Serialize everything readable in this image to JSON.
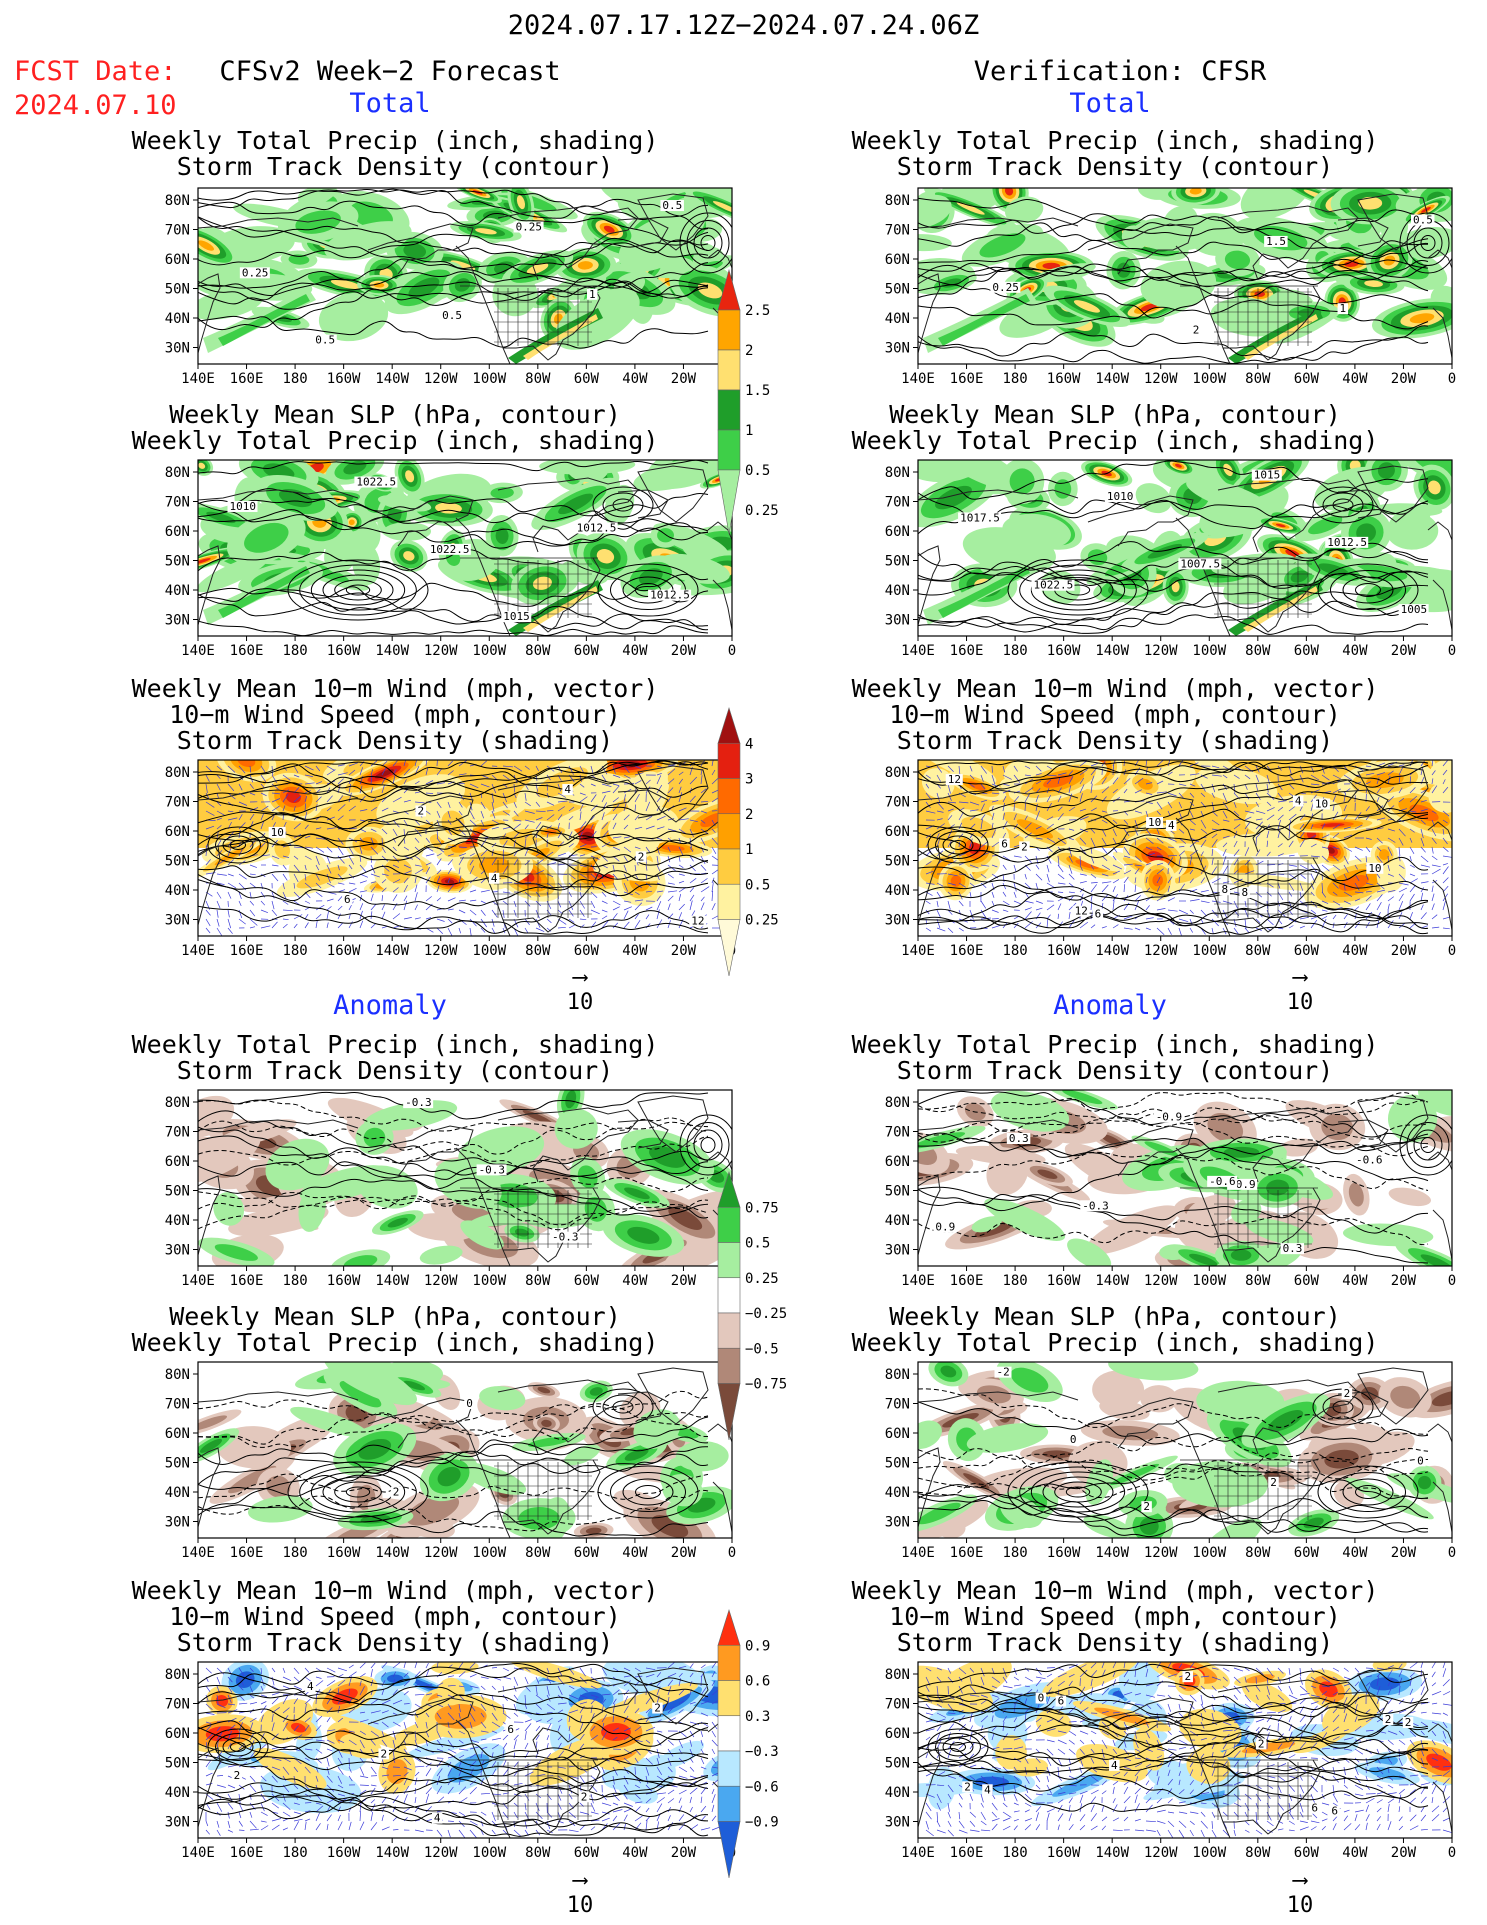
{
  "header": {
    "period": "2024.07.17.12Z−2024.07.24.06Z",
    "fcst_label": "FCST Date:",
    "fcst_date": "2024.07.10",
    "left_title": "CFSv2 Week−2 Forecast",
    "right_title": "Verification: CFSR",
    "total_label": "Total",
    "anomaly_label": "Anomaly"
  },
  "panel_titles": {
    "precip_storm": [
      "Weekly Total Precip (inch, shading)",
      "Storm Track Density (contour)"
    ],
    "slp_precip": [
      "Weekly Mean SLP (hPa, contour)",
      "Weekly Total Precip (inch, shading)"
    ],
    "wind_storm": [
      "Weekly Mean 10−m Wind (mph, vector)",
      "10−m Wind Speed (mph, contour)",
      "Storm Track Density (shading)"
    ]
  },
  "axes": {
    "lat_labels": [
      "80N",
      "70N",
      "60N",
      "50N",
      "40N",
      "30N"
    ],
    "lon_labels": [
      "140E",
      "160E",
      "180",
      "160W",
      "140W",
      "120W",
      "100W",
      "80W",
      "60W",
      "40W",
      "20W",
      "0"
    ]
  },
  "vector_ref": "10",
  "colorbars": {
    "precip_total": {
      "labels": [
        "2.5",
        "2",
        "1.5",
        "1",
        "0.5",
        "0.25"
      ],
      "colors": [
        "#e8250f",
        "#ffa500",
        "#ffe070",
        "#1f9e2a",
        "#3ecf48",
        "#a6eea0"
      ]
    },
    "storm_total": {
      "labels": [
        "4",
        "3",
        "2",
        "1",
        "0.5",
        "0.25"
      ],
      "colors": [
        "#a01010",
        "#e42010",
        "#ff6a00",
        "#ffa000",
        "#ffcc40",
        "#fff2a0",
        "#fffad8"
      ]
    },
    "precip_anom": {
      "labels": [
        "0.75",
        "0.5",
        "0.25",
        "−0.25",
        "−0.5",
        "−0.75"
      ],
      "colors": [
        "#1f9e2a",
        "#3ecf48",
        "#a6eea0",
        "#ffffff",
        "#e3c8bd",
        "#b08878",
        "#7a4a3a"
      ]
    },
    "storm_anom": {
      "labels": [
        "0.9",
        "0.6",
        "0.3",
        "−0.3",
        "−0.6",
        "−0.9"
      ],
      "colors": [
        "#ff3010",
        "#ff9a20",
        "#ffe070",
        "#ffffff",
        "#b8e8ff",
        "#4aa8f0",
        "#1e5ed8"
      ]
    }
  },
  "panels": [
    {
      "id": "fc-total-precip",
      "contour_labels": [
        "0.5",
        "0.25",
        "0.5",
        "1",
        "0.25",
        "0.5"
      ]
    },
    {
      "id": "vf-total-precip",
      "contour_labels": [
        "0.25",
        "0.5",
        "1",
        "1.5",
        "2"
      ]
    },
    {
      "id": "fc-total-slp",
      "contour_labels": [
        "1010",
        "1012.5",
        "1012.5",
        "1015",
        "1022.5",
        "1022.5"
      ]
    },
    {
      "id": "vf-total-slp",
      "contour_labels": [
        "1005",
        "1012.5",
        "1015",
        "1007.5",
        "1010",
        "1022.5",
        "1017.5"
      ]
    },
    {
      "id": "fc-total-wind",
      "contour_labels": [
        "2",
        "4",
        "4",
        "2",
        "6",
        "10",
        "12"
      ]
    },
    {
      "id": "vf-total-wind",
      "contour_labels": [
        "10",
        "8",
        "4",
        "6",
        "2",
        "12",
        "10",
        "4",
        "8",
        "10",
        "12",
        "6"
      ]
    },
    {
      "id": "fc-anom-precip",
      "contour_labels": [
        "-0.3",
        "-0.3",
        "-0.3"
      ]
    },
    {
      "id": "vf-anom-precip",
      "contour_labels": [
        "-0.9",
        "-0.9",
        "-0.3",
        "0.3",
        "0.9",
        "-0.6",
        "0.3",
        "-0.6"
      ]
    },
    {
      "id": "fc-anom-slp",
      "contour_labels": [
        "0",
        "2"
      ]
    },
    {
      "id": "vf-anom-slp",
      "contour_labels": [
        "2",
        "0",
        "-2",
        "0",
        "2",
        "2"
      ]
    },
    {
      "id": "fc-anom-wind",
      "contour_labels": [
        "2",
        "4",
        "2",
        "2",
        "2",
        "6",
        "4"
      ]
    },
    {
      "id": "vf-anom-wind",
      "contour_labels": [
        "6",
        "4",
        "2",
        "6",
        "2",
        "2",
        "4",
        "0",
        "2",
        "2",
        "6"
      ]
    }
  ]
}
